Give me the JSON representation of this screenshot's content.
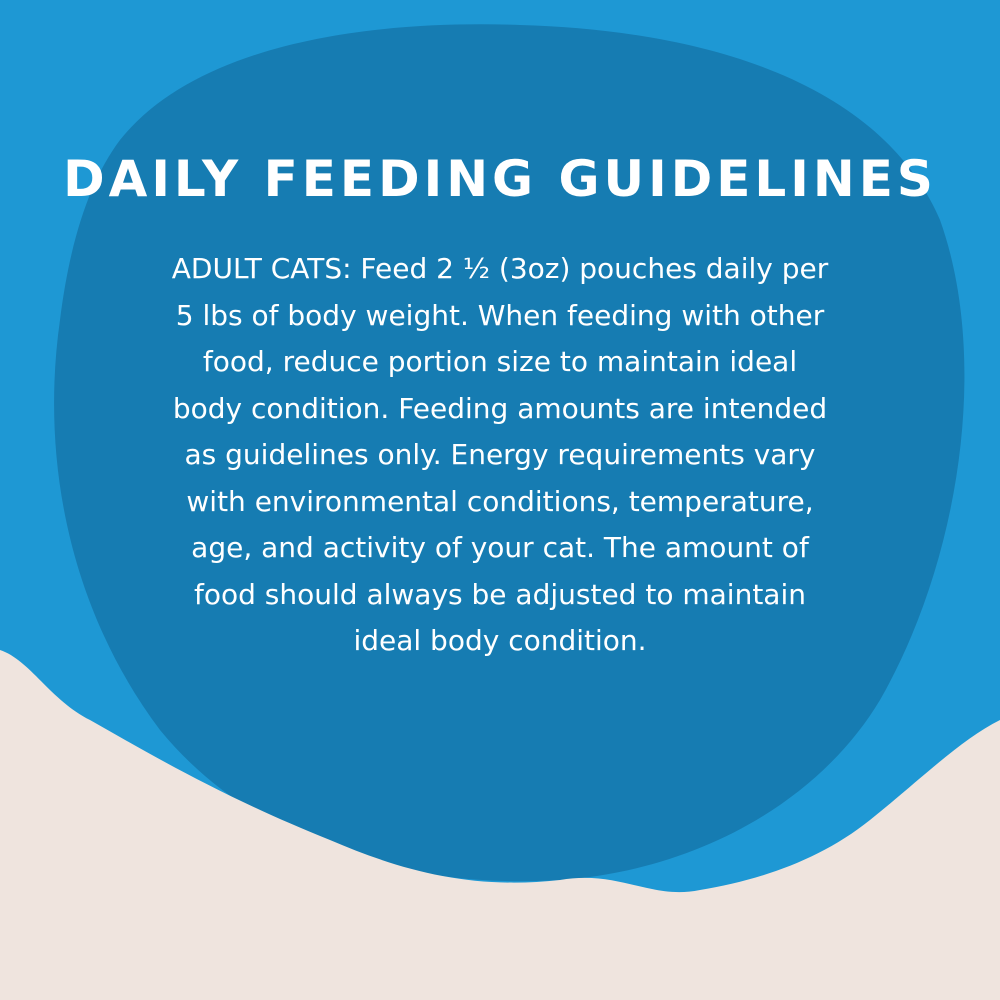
{
  "colors": {
    "background_blue": "#1e98d4",
    "circle_blue": "#1577ab",
    "sand": "#efe4de",
    "text": "#ffffff"
  },
  "title": "DAILY FEEDING GUIDELINES",
  "body_lines": [
    "ADULT CATS: Feed 2 ½ (3oz) pouches daily per",
    "5 lbs of body weight. When feeding with other",
    "food, reduce portion size to maintain ideal",
    "body condition. Feeding amounts are intended",
    "as guidelines only. Energy requirements vary",
    "with environmental conditions, temperature,",
    "age, and activity of your cat. The amount of",
    "food should always be adjusted to maintain",
    "ideal body condition."
  ]
}
